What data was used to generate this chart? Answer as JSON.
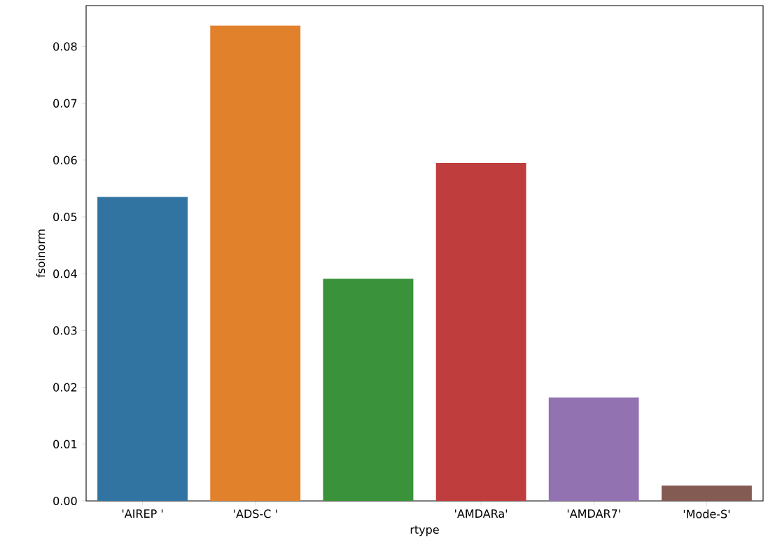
{
  "chart_data": {
    "type": "bar",
    "xlabel": "rtype",
    "ylabel": "fsoinorm",
    "categories": [
      "'AIREP '",
      "'ADS-C '",
      null,
      "'AMDARa'",
      "'AMDAR7'",
      "'Mode-S'"
    ],
    "values": [
      0.0535,
      0.0837,
      0.0391,
      0.0595,
      0.0182,
      0.0027
    ],
    "colors": [
      "#3274a1",
      "#e1812c",
      "#3a923a",
      "#c03d3e",
      "#9372b2",
      "#845b53"
    ],
    "ylim": [
      0,
      0.0872
    ],
    "yticks": [
      {
        "value": 0,
        "label": "0.00"
      },
      {
        "value": 0.01,
        "label": "0.01"
      },
      {
        "value": 0.02,
        "label": "0.02"
      },
      {
        "value": 0.03,
        "label": "0.03"
      },
      {
        "value": 0.04,
        "label": "0.04"
      },
      {
        "value": 0.05,
        "label": "0.05"
      },
      {
        "value": 0.06,
        "label": "0.06"
      },
      {
        "value": 0.07,
        "label": "0.07"
      },
      {
        "value": 0.08,
        "label": "0.08"
      }
    ],
    "grid": false
  }
}
